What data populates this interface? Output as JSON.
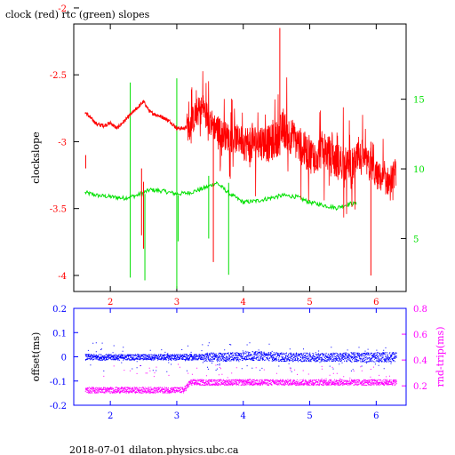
{
  "title": "clock (red) rtc (green) slopes",
  "footer": "2018-07-01  dilaton.physics.ubc.ca",
  "colors": {
    "red": "#ff0000",
    "green": "#00e000",
    "blue": "#0000ff",
    "magenta": "#ff00ff",
    "black": "#000000"
  },
  "chart_data": [
    {
      "type": "line",
      "title": "clock (red) rtc (green) slopes",
      "xlabel": "",
      "ylabel": "clockslope",
      "xlim": [
        1.45,
        6.45
      ],
      "ylim": [
        -4.12,
        -2.12
      ],
      "x_ticks": [
        "2",
        "3",
        "4",
        "5",
        "6"
      ],
      "y_ticks": [
        "-2",
        "-2.5",
        "-3",
        "-3.5",
        "-4"
      ],
      "y2lim": [
        1.2,
        20.4
      ],
      "y2_ticks": [
        "5",
        "10",
        "15"
      ],
      "grid": false,
      "series": [
        {
          "axis": "left",
          "color": "red",
          "x": [
            1.62,
            1.7,
            1.8,
            1.9,
            2.0,
            2.1,
            2.2,
            2.3,
            2.4,
            2.5,
            2.6,
            2.7,
            2.8,
            2.9,
            3.0,
            3.1,
            3.2,
            3.3,
            3.4,
            3.5,
            3.6,
            3.7,
            3.8,
            3.9,
            4.0,
            4.1,
            4.2,
            4.3,
            4.4,
            4.5,
            4.6,
            4.7,
            4.8,
            4.9,
            5.0,
            5.1,
            5.2,
            5.3,
            5.4,
            5.5,
            5.6,
            5.7,
            5.8,
            5.9,
            6.0,
            6.1,
            6.2,
            6.3
          ],
          "values": [
            -2.78,
            -2.82,
            -2.87,
            -2.88,
            -2.86,
            -2.9,
            -2.85,
            -2.8,
            -2.75,
            -2.7,
            -2.78,
            -2.8,
            -2.82,
            -2.85,
            -2.9,
            -2.9,
            -2.88,
            -2.78,
            -2.75,
            -2.85,
            -2.9,
            -2.95,
            -2.97,
            -2.98,
            -3.0,
            -3.02,
            -3.0,
            -3.0,
            -3.02,
            -2.98,
            -2.9,
            -2.95,
            -3.0,
            -3.05,
            -3.1,
            -3.1,
            -3.05,
            -3.1,
            -3.15,
            -3.15,
            -3.2,
            -3.15,
            -3.12,
            -3.18,
            -3.25,
            -3.28,
            -3.3,
            -3.22
          ]
        },
        {
          "axis": "right",
          "color": "green",
          "x": [
            1.62,
            1.8,
            2.0,
            2.2,
            2.4,
            2.6,
            2.8,
            3.0,
            3.2,
            3.4,
            3.6,
            3.8,
            4.0,
            4.2,
            4.4,
            4.6,
            4.8,
            5.0,
            5.2,
            5.4,
            5.6
          ],
          "values": [
            8.3,
            8.1,
            8.0,
            7.9,
            8.1,
            8.5,
            8.4,
            8.2,
            8.3,
            8.6,
            9.0,
            8.2,
            7.6,
            7.7,
            7.9,
            8.1,
            8.0,
            7.6,
            7.4,
            7.2,
            7.5
          ]
        }
      ]
    },
    {
      "type": "scatter",
      "xlabel": "",
      "ylabel": "offset(ms)",
      "y2label": "rnd-trip(ms)",
      "xlim": [
        1.45,
        6.45
      ],
      "ylim": [
        -0.2,
        0.2
      ],
      "x_ticks": [
        "2",
        "3",
        "4",
        "5",
        "6"
      ],
      "y_ticks": [
        "0.2",
        "0.1",
        "0",
        "-0.1",
        "-0.2"
      ],
      "y2lim": [
        0.05,
        0.8
      ],
      "y2_ticks": [
        "0.8",
        "0.6",
        "0.4",
        "0.2"
      ],
      "grid": false,
      "series": [
        {
          "axis": "left",
          "color": "blue",
          "x": [
            1.62,
            1.9,
            2.2,
            2.5,
            2.8,
            3.1,
            3.4,
            3.7,
            4.0,
            4.3,
            4.6,
            4.9,
            5.2,
            5.5,
            5.8,
            6.1,
            6.3
          ],
          "values": [
            0.0,
            0.0,
            0.0,
            0.0,
            0.0,
            0.0,
            0.0,
            0.0,
            0.005,
            0.005,
            0.0,
            0.0,
            0.0,
            0.0,
            0.0,
            0.0,
            0.0
          ]
        },
        {
          "axis": "right",
          "color": "magenta",
          "x": [
            1.62,
            1.9,
            2.2,
            2.5,
            2.8,
            3.1,
            3.2,
            3.5,
            3.8,
            4.1,
            4.4,
            4.7,
            5.0,
            5.3,
            5.6,
            5.9,
            6.3
          ],
          "values": [
            0.17,
            0.17,
            0.17,
            0.17,
            0.17,
            0.17,
            0.23,
            0.23,
            0.23,
            0.23,
            0.23,
            0.23,
            0.23,
            0.23,
            0.23,
            0.23,
            0.23
          ]
        }
      ]
    }
  ]
}
